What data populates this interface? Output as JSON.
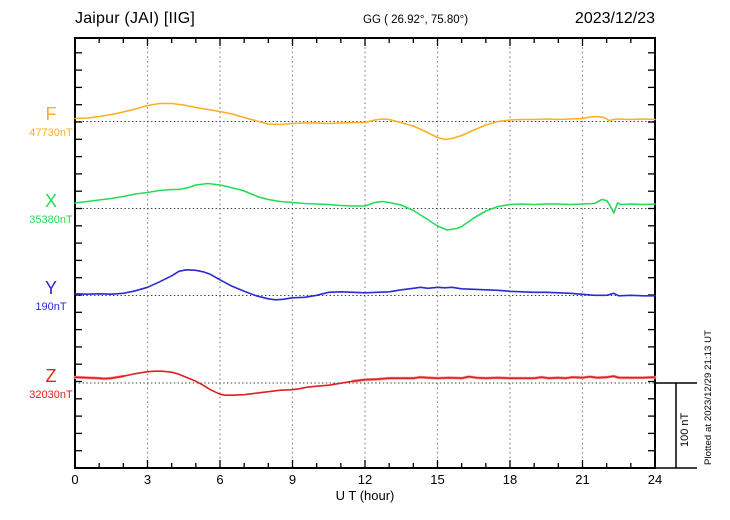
{
  "header": {
    "station": "Jaipur (JAI)  [IIG]",
    "coords": "GG ( 26.92°,  75.80°)",
    "date": "2023/12/23"
  },
  "footer": {
    "plotted_at": "Plotted at 2023/12/29 21:13 UT"
  },
  "chart_data": {
    "type": "line",
    "title": "Magnetogram Jaipur (JAI) [IIG] 2023/12/23",
    "xlabel": "U T (hour)",
    "x_ticks": [
      0,
      3,
      6,
      9,
      12,
      15,
      18,
      21,
      24
    ],
    "x_range": [
      0,
      24
    ],
    "x_minor_step_hours": 1,
    "grid": "vertical dotted lines every 3 h; dotted horizontal baseline per channel",
    "legend_position": "left margin, one colored label per stacked channel",
    "scale": {
      "label": "100 nT",
      "nT_per_tick": 20
    },
    "y_unit": "nT deviation from listed baseline value",
    "series": [
      {
        "name": "F",
        "baseline_label": "47730nT",
        "baseline_value_nT": 47730,
        "color": "#FFAE21",
        "points": [
          [
            0,
            3.4
          ],
          [
            0.5,
            4
          ],
          [
            1,
            5.7
          ],
          [
            1.5,
            8
          ],
          [
            2,
            10.9
          ],
          [
            2.5,
            14.4
          ],
          [
            3,
            18.4
          ],
          [
            3.5,
            20.7
          ],
          [
            4,
            20.7
          ],
          [
            4.5,
            19
          ],
          [
            5,
            16.1
          ],
          [
            5.5,
            13.8
          ],
          [
            6,
            11.5
          ],
          [
            6.5,
            8.6
          ],
          [
            7,
            4.6
          ],
          [
            7.3,
            2.3
          ],
          [
            7.6,
            0
          ],
          [
            8,
            -2.9
          ],
          [
            8.5,
            -3.4
          ],
          [
            9,
            -2.3
          ],
          [
            9.5,
            -1.7
          ],
          [
            10,
            -1.7
          ],
          [
            10.5,
            -2.3
          ],
          [
            11,
            -1.7
          ],
          [
            11.5,
            -1.1
          ],
          [
            12,
            -1.1
          ],
          [
            12.4,
            1.7
          ],
          [
            12.7,
            2.9
          ],
          [
            13,
            2.3
          ],
          [
            13.4,
            -0.6
          ],
          [
            14,
            -5.2
          ],
          [
            14.5,
            -11.5
          ],
          [
            15,
            -18.4
          ],
          [
            15.3,
            -20.7
          ],
          [
            15.6,
            -19.5
          ],
          [
            16,
            -16.1
          ],
          [
            16.5,
            -9.8
          ],
          [
            17,
            -4
          ],
          [
            17.5,
            0
          ],
          [
            18,
            1.7
          ],
          [
            18.5,
            2.3
          ],
          [
            19,
            2.3
          ],
          [
            19.5,
            2.9
          ],
          [
            20,
            2.3
          ],
          [
            20.5,
            2.9
          ],
          [
            21,
            3.4
          ],
          [
            21.3,
            5.2
          ],
          [
            21.6,
            5.7
          ],
          [
            21.9,
            4.6
          ],
          [
            22.1,
            1.1
          ],
          [
            22.4,
            2.9
          ],
          [
            23,
            2.3
          ],
          [
            23.5,
            2.9
          ],
          [
            24,
            2.3
          ]
        ]
      },
      {
        "name": "X",
        "baseline_label": "35380nT",
        "baseline_value_nT": 35380,
        "color": "#22DD55",
        "points": [
          [
            0,
            6.3
          ],
          [
            0.5,
            8
          ],
          [
            1,
            9.8
          ],
          [
            1.5,
            11.5
          ],
          [
            2,
            13.8
          ],
          [
            2.5,
            16.7
          ],
          [
            3,
            18.4
          ],
          [
            3.5,
            20.7
          ],
          [
            4,
            21.8
          ],
          [
            4.3,
            21.8
          ],
          [
            4.7,
            24.1
          ],
          [
            5,
            27
          ],
          [
            5.5,
            28.7
          ],
          [
            6,
            27
          ],
          [
            6.3,
            25.3
          ],
          [
            6.6,
            23
          ],
          [
            6.8,
            21.8
          ],
          [
            7,
            20.1
          ],
          [
            7.3,
            16.7
          ],
          [
            7.6,
            13.2
          ],
          [
            8,
            10.3
          ],
          [
            8.5,
            8
          ],
          [
            9,
            6.9
          ],
          [
            9.5,
            5.7
          ],
          [
            10,
            5.2
          ],
          [
            10.5,
            4.6
          ],
          [
            11,
            3.4
          ],
          [
            11.5,
            2.9
          ],
          [
            12,
            2.9
          ],
          [
            12.4,
            6.9
          ],
          [
            12.7,
            8
          ],
          [
            13,
            6.9
          ],
          [
            13.5,
            4
          ],
          [
            14,
            -2.3
          ],
          [
            14.5,
            -10.9
          ],
          [
            15,
            -20.1
          ],
          [
            15.4,
            -24.7
          ],
          [
            15.8,
            -23
          ],
          [
            16,
            -20.7
          ],
          [
            16.5,
            -10.9
          ],
          [
            17,
            -2.9
          ],
          [
            17.5,
            2.3
          ],
          [
            18,
            4.6
          ],
          [
            18.5,
            5.2
          ],
          [
            19,
            4.6
          ],
          [
            19.5,
            5.2
          ],
          [
            20,
            5.2
          ],
          [
            20.5,
            4.6
          ],
          [
            21,
            5.2
          ],
          [
            21.5,
            5.7
          ],
          [
            21.8,
            10.3
          ],
          [
            22,
            9.2
          ],
          [
            22.15,
            2.9
          ],
          [
            22.3,
            -5.2
          ],
          [
            22.45,
            6.3
          ],
          [
            22.6,
            4.6
          ],
          [
            23,
            5.2
          ],
          [
            23.5,
            4.6
          ],
          [
            24,
            5.2
          ]
        ]
      },
      {
        "name": "Y",
        "baseline_label": "190nT",
        "baseline_value_nT": 190,
        "color": "#2B2BCE",
        "points": [
          [
            0,
            2
          ],
          [
            0.5,
            1.5
          ],
          [
            1,
            2
          ],
          [
            1.5,
            1.5
          ],
          [
            2,
            2.5
          ],
          [
            2.5,
            5.4
          ],
          [
            3,
            9.4
          ],
          [
            3.5,
            15.7
          ],
          [
            4,
            22.6
          ],
          [
            4.3,
            27.8
          ],
          [
            4.6,
            29.5
          ],
          [
            5,
            29
          ],
          [
            5.3,
            27.2
          ],
          [
            5.6,
            24.4
          ],
          [
            6,
            18
          ],
          [
            6.5,
            10.6
          ],
          [
            7,
            4.8
          ],
          [
            7.5,
            -0.3
          ],
          [
            8,
            -3.8
          ],
          [
            8.3,
            -4.9
          ],
          [
            8.6,
            -4.4
          ],
          [
            9,
            -2.6
          ],
          [
            9.5,
            -2.1
          ],
          [
            10,
            0.2
          ],
          [
            10.5,
            3.7
          ],
          [
            11,
            4.3
          ],
          [
            11.5,
            3.7
          ],
          [
            12,
            3.1
          ],
          [
            12.5,
            3.7
          ],
          [
            13,
            4.3
          ],
          [
            13.5,
            6.6
          ],
          [
            14,
            8.3
          ],
          [
            14.3,
            9.4
          ],
          [
            14.6,
            8.3
          ],
          [
            15,
            9.4
          ],
          [
            15.3,
            8.9
          ],
          [
            15.6,
            9.4
          ],
          [
            16,
            7.7
          ],
          [
            16.5,
            7.1
          ],
          [
            17,
            6.6
          ],
          [
            17.5,
            6
          ],
          [
            18,
            4.8
          ],
          [
            18.5,
            4.3
          ],
          [
            19,
            3.7
          ],
          [
            19.5,
            3.7
          ],
          [
            20,
            3.1
          ],
          [
            20.5,
            2.5
          ],
          [
            21,
            1.4
          ],
          [
            21.5,
            0.2
          ],
          [
            22,
            0.2
          ],
          [
            22.3,
            2.5
          ],
          [
            22.5,
            -0.3
          ],
          [
            23,
            0.2
          ],
          [
            23.5,
            -0.3
          ],
          [
            24,
            -0.3
          ]
        ]
      },
      {
        "name": "Z",
        "baseline_label": "32030nT",
        "baseline_value_nT": 32030,
        "color": "#DD2222",
        "halo_color": "#FF9D9D",
        "points": [
          [
            0,
            6.7
          ],
          [
            0.5,
            6.1
          ],
          [
            1,
            5.5
          ],
          [
            1.2,
            4.9
          ],
          [
            1.5,
            5.5
          ],
          [
            2,
            7.8
          ],
          [
            2.5,
            10.7
          ],
          [
            3,
            13
          ],
          [
            3.3,
            13.6
          ],
          [
            3.6,
            13.6
          ],
          [
            4,
            12.4
          ],
          [
            4.3,
            10.1
          ],
          [
            4.6,
            6.7
          ],
          [
            5,
            2.1
          ],
          [
            5.3,
            -2.5
          ],
          [
            5.6,
            -7.7
          ],
          [
            6,
            -12.9
          ],
          [
            6.2,
            -14
          ],
          [
            6.5,
            -14
          ],
          [
            7,
            -13.4
          ],
          [
            7.5,
            -11.7
          ],
          [
            8,
            -10
          ],
          [
            8.5,
            -8.3
          ],
          [
            9,
            -7.7
          ],
          [
            9.3,
            -6.5
          ],
          [
            9.6,
            -4.8
          ],
          [
            10,
            -3.7
          ],
          [
            10.5,
            -2.5
          ],
          [
            11,
            -0.2
          ],
          [
            11.5,
            2.1
          ],
          [
            12,
            3.8
          ],
          [
            12.5,
            4.4
          ],
          [
            13,
            5.5
          ],
          [
            13.5,
            5.5
          ],
          [
            14,
            5.5
          ],
          [
            14.3,
            6.7
          ],
          [
            14.6,
            6.1
          ],
          [
            15,
            5.5
          ],
          [
            15.5,
            6.1
          ],
          [
            16,
            5.5
          ],
          [
            16.3,
            7.2
          ],
          [
            16.6,
            6.1
          ],
          [
            17,
            5.5
          ],
          [
            17.5,
            6.1
          ],
          [
            18,
            5.5
          ],
          [
            18.5,
            5.5
          ],
          [
            19,
            5.5
          ],
          [
            19.3,
            6.7
          ],
          [
            19.6,
            5.5
          ],
          [
            20,
            6.1
          ],
          [
            20.3,
            5.5
          ],
          [
            20.6,
            6.7
          ],
          [
            21,
            6.1
          ],
          [
            21.3,
            7.2
          ],
          [
            21.6,
            6.1
          ],
          [
            22,
            6.7
          ],
          [
            22.3,
            7.8
          ],
          [
            22.5,
            6.1
          ],
          [
            23,
            6.1
          ],
          [
            23.5,
            6.1
          ],
          [
            24,
            6.7
          ]
        ]
      }
    ]
  }
}
